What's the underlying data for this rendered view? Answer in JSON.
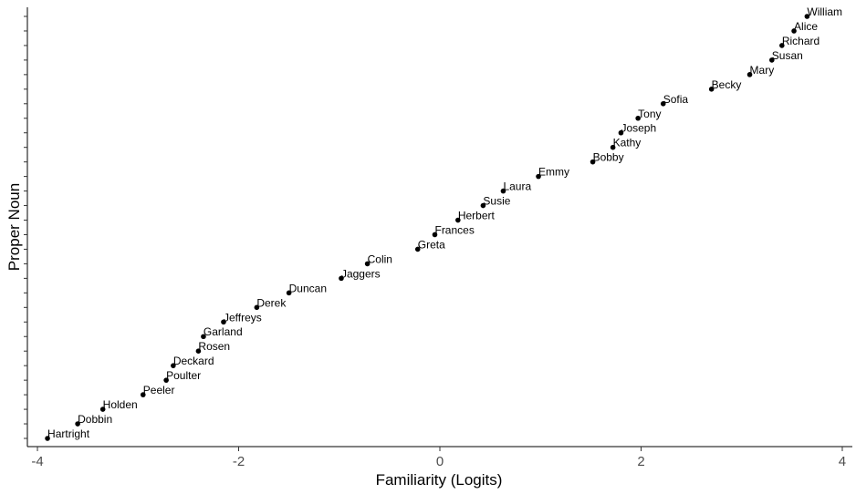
{
  "chart_data": {
    "type": "scatter",
    "title": "",
    "xlabel": "Familiarity (Logits)",
    "ylabel": "Proper Noun",
    "xlim": [
      -4.1,
      4.1
    ],
    "x_ticks": [
      -4,
      -2,
      0,
      2,
      4
    ],
    "grid": false,
    "legend": "none",
    "point_color": "#000000",
    "points": [
      {
        "label": "Hartright",
        "x": -3.9
      },
      {
        "label": "Dobbin",
        "x": -3.6
      },
      {
        "label": "Holden",
        "x": -3.35
      },
      {
        "label": "Peeler",
        "x": -2.95
      },
      {
        "label": "Poulter",
        "x": -2.72
      },
      {
        "label": "Deckard",
        "x": -2.65
      },
      {
        "label": "Rosen",
        "x": -2.4
      },
      {
        "label": "Garland",
        "x": -2.35
      },
      {
        "label": "Jeffreys",
        "x": -2.15
      },
      {
        "label": "Derek",
        "x": -1.82
      },
      {
        "label": "Duncan",
        "x": -1.5
      },
      {
        "label": "Jaggers",
        "x": -0.98
      },
      {
        "label": "Colin",
        "x": -0.72
      },
      {
        "label": "Greta",
        "x": -0.22
      },
      {
        "label": "Frances",
        "x": -0.05
      },
      {
        "label": "Herbert",
        "x": 0.18
      },
      {
        "label": "Susie",
        "x": 0.43
      },
      {
        "label": "Laura",
        "x": 0.63
      },
      {
        "label": "Emmy",
        "x": 0.98
      },
      {
        "label": "Bobby",
        "x": 1.52
      },
      {
        "label": "Kathy",
        "x": 1.72
      },
      {
        "label": "Joseph",
        "x": 1.8
      },
      {
        "label": "Tony",
        "x": 1.97
      },
      {
        "label": "Sofia",
        "x": 2.22
      },
      {
        "label": "Becky",
        "x": 2.7
      },
      {
        "label": "Mary",
        "x": 3.08
      },
      {
        "label": "Susan",
        "x": 3.3
      },
      {
        "label": "Richard",
        "x": 3.4
      },
      {
        "label": "Alice",
        "x": 3.52
      },
      {
        "label": "William",
        "x": 3.65
      }
    ]
  }
}
